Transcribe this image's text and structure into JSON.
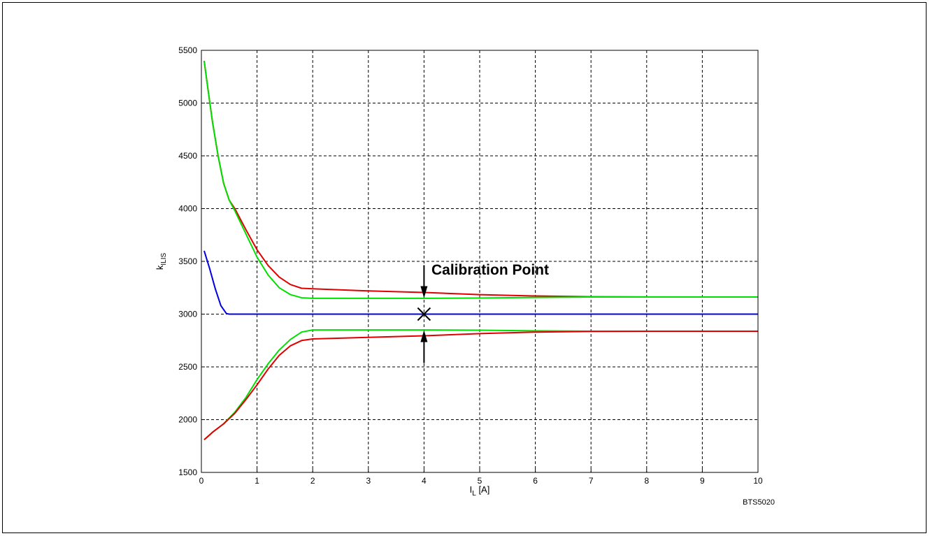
{
  "chart_data": {
    "type": "line",
    "title": "",
    "xlabel": "I",
    "xlabel_sub": "L",
    "xlabel_unit": " [A]",
    "ylabel": "k",
    "ylabel_sub": "ILIS",
    "xlim": [
      0,
      10
    ],
    "ylim": [
      1500,
      5500
    ],
    "xticks": [
      0,
      1,
      2,
      3,
      4,
      5,
      6,
      7,
      8,
      9,
      10
    ],
    "yticks": [
      1500,
      2000,
      2500,
      3000,
      3500,
      4000,
      4500,
      5000,
      5500
    ],
    "grid": true,
    "series": [
      {
        "color": "#0000e0",
        "x": [
          0.05,
          0.15,
          0.25,
          0.35,
          0.45,
          0.5,
          1,
          2,
          4,
          6,
          8,
          10
        ],
        "y": [
          3600,
          3430,
          3240,
          3080,
          3005,
          3000,
          3000,
          3000,
          3000,
          3000,
          3000,
          3000
        ]
      },
      {
        "color": "#e00000",
        "x": [
          0.05,
          0.1,
          0.2,
          0.3,
          0.4,
          0.5,
          0.6,
          0.8,
          1.0,
          1.2,
          1.4,
          1.6,
          1.8,
          2.0,
          3,
          4,
          5,
          6,
          7,
          8,
          9,
          10
        ],
        "y": [
          5400,
          5200,
          4820,
          4500,
          4240,
          4080,
          4000,
          3800,
          3610,
          3460,
          3350,
          3280,
          3245,
          3240,
          3220,
          3205,
          3185,
          3172,
          3165,
          3163,
          3162,
          3162
        ]
      },
      {
        "color": "#00e000",
        "x": [
          0.05,
          0.1,
          0.2,
          0.3,
          0.4,
          0.5,
          0.6,
          0.8,
          1.0,
          1.2,
          1.4,
          1.6,
          1.8,
          2.0,
          3,
          4,
          5,
          6,
          7,
          8,
          9,
          10
        ],
        "y": [
          5400,
          5200,
          4820,
          4500,
          4240,
          4080,
          3980,
          3760,
          3540,
          3370,
          3250,
          3185,
          3155,
          3150,
          3150,
          3150,
          3152,
          3158,
          3162,
          3162,
          3162,
          3162
        ]
      },
      {
        "color": "#00e000",
        "x": [
          0.05,
          0.2,
          0.4,
          0.6,
          0.8,
          1.0,
          1.2,
          1.4,
          1.6,
          1.8,
          2.0,
          3,
          4,
          5,
          6,
          7,
          8,
          9,
          10
        ],
        "y": [
          1810,
          1880,
          1960,
          2070,
          2210,
          2380,
          2530,
          2660,
          2760,
          2830,
          2850,
          2850,
          2850,
          2848,
          2842,
          2838,
          2838,
          2838,
          2838
        ]
      },
      {
        "color": "#e00000",
        "x": [
          0.05,
          0.2,
          0.4,
          0.6,
          0.8,
          1.0,
          1.2,
          1.4,
          1.6,
          1.8,
          2.0,
          3,
          4,
          5,
          6,
          7,
          8,
          9,
          10
        ],
        "y": [
          1810,
          1880,
          1960,
          2060,
          2190,
          2330,
          2480,
          2610,
          2700,
          2750,
          2765,
          2780,
          2795,
          2815,
          2830,
          2836,
          2838,
          2838,
          2838
        ]
      }
    ],
    "calibration_point": {
      "x": 4,
      "y": 3000
    },
    "annotation": "Calibration Point",
    "figure_id": "BTS5020"
  }
}
